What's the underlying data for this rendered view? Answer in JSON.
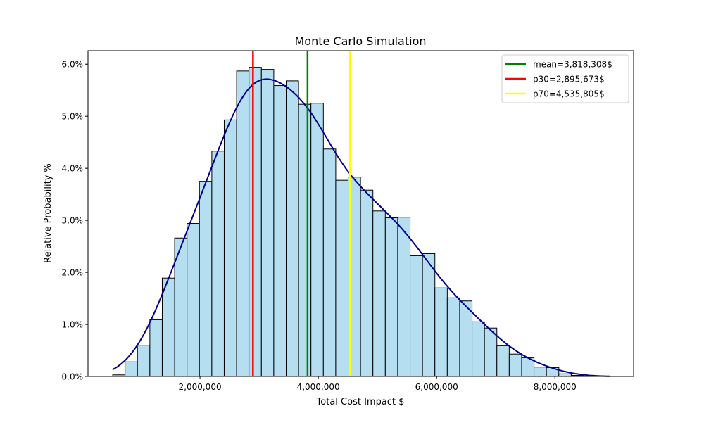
{
  "chart_data": {
    "type": "bar",
    "title": "Monte Carlo Simulation",
    "xlabel": "Total Cost Impact $",
    "ylabel": "Relative Probability %",
    "xlim": [
      107000,
      9330000
    ],
    "ylim": [
      0,
      6.26
    ],
    "grid": false,
    "legend_position": "top-right",
    "bin_start": 524000,
    "bin_width": 209500,
    "values": [
      0.03,
      0.28,
      0.6,
      1.09,
      1.89,
      2.66,
      2.94,
      3.75,
      4.33,
      4.93,
      5.87,
      5.94,
      5.9,
      5.59,
      5.68,
      5.23,
      5.25,
      4.37,
      3.77,
      3.83,
      3.58,
      3.18,
      3.05,
      3.06,
      2.32,
      2.36,
      1.7,
      1.51,
      1.45,
      1.05,
      0.93,
      0.59,
      0.43,
      0.36,
      0.18,
      0.17,
      0.05,
      0.02
    ],
    "kde_range": [
      520000,
      8930000
    ],
    "x_ticks": [
      2000000,
      4000000,
      6000000,
      8000000
    ],
    "x_tick_labels": [
      "2,000,000",
      "4,000,000",
      "6,000,000",
      "8,000,000"
    ],
    "y_ticks": [
      0,
      1,
      2,
      3,
      4,
      5,
      6
    ],
    "y_tick_labels": [
      "0.0%",
      "1.0%",
      "2.0%",
      "3.0%",
      "4.0%",
      "5.0%",
      "6.0%"
    ],
    "vlines": [
      {
        "label": "mean=3,818,308$",
        "x": 3818308,
        "color": "#008000"
      },
      {
        "label": "p30=2,895,673$",
        "x": 2895673,
        "color": "#ff0000"
      },
      {
        "label": "p70=4,535,805$",
        "x": 4535805,
        "color": "#ffff00"
      }
    ],
    "colors": {
      "bar_fill": "#b5dff0",
      "bar_edge": "#000000",
      "kde": "#00008b"
    }
  }
}
